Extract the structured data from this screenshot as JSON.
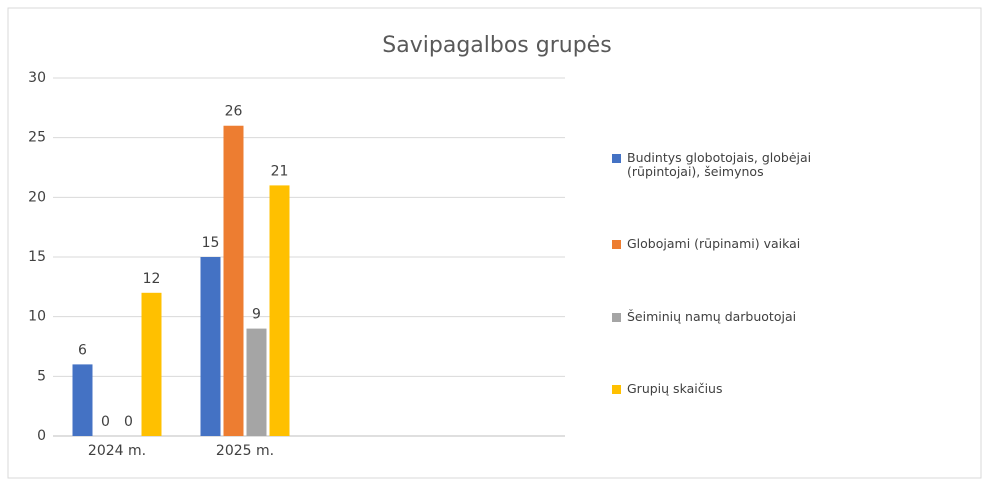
{
  "chart_data": {
    "type": "bar",
    "title": "Savipagalbos grupės",
    "categories": [
      "2024 m.",
      "2025 m.",
      null,
      null
    ],
    "series": [
      {
        "name": "Budintys globotojais, globėjai (rūpintojai), šeimynos",
        "color": "#4472c4",
        "values": [
          6,
          15,
          null,
          null
        ]
      },
      {
        "name": "Globojami (rūpinami) vaikai",
        "color": "#ed7d31",
        "values": [
          0,
          26,
          null,
          null
        ]
      },
      {
        "name": "Šeiminių namų darbuotojai",
        "color": "#a5a5a5",
        "values": [
          0,
          9,
          null,
          null
        ]
      },
      {
        "name": "Grupių skaičius",
        "color": "#ffc000",
        "values": [
          12,
          21,
          null,
          null
        ]
      }
    ],
    "ylim": [
      0,
      30
    ],
    "yticks": [
      0,
      5,
      10,
      15,
      20,
      25,
      30
    ],
    "grid": true,
    "legend": "right"
  }
}
